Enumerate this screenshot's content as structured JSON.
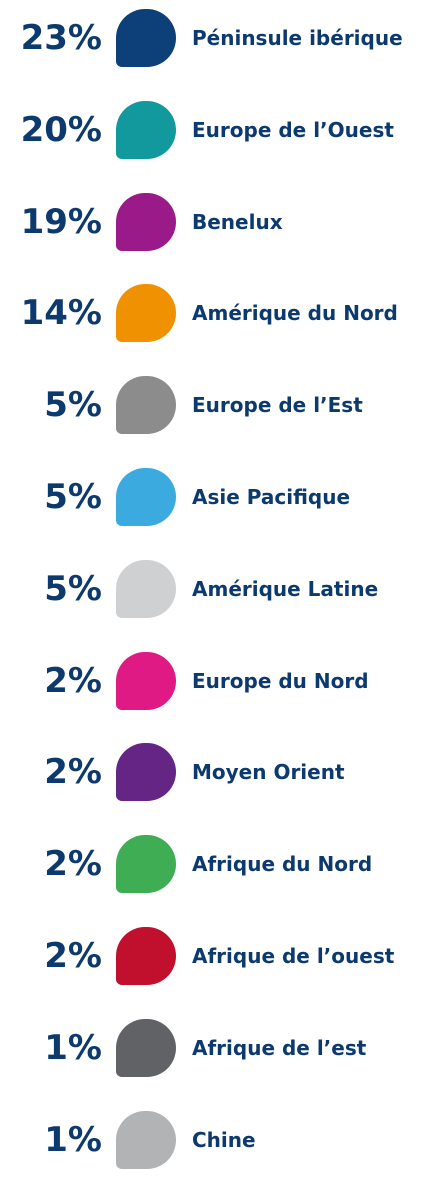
{
  "items": [
    {
      "percent": "23%",
      "label": "Péninsule ibérique",
      "color": "#0d3f78"
    },
    {
      "percent": "20%",
      "label": "Europe de l’Ouest",
      "color": "#11999e"
    },
    {
      "percent": "19%",
      "label": "Benelux",
      "color": "#9b1a8a"
    },
    {
      "percent": "14%",
      "label": "Amérique du Nord",
      "color": "#ef9100"
    },
    {
      "percent": "5%",
      "label": "Europe de l’Est",
      "color": "#8c8c8c"
    },
    {
      "percent": "5%",
      "label": "Asie Pacifique",
      "color": "#3aaadf"
    },
    {
      "percent": "5%",
      "label": "Amérique Latine",
      "color": "#cfd0d2"
    },
    {
      "percent": "2%",
      "label": "Europe du Nord",
      "color": "#e01a84"
    },
    {
      "percent": "2%",
      "label": "Moyen Orient",
      "color": "#652585"
    },
    {
      "percent": "2%",
      "label": "Afrique du Nord",
      "color": "#3ead54"
    },
    {
      "percent": "2%",
      "label": "Afrique de l’ouest",
      "color": "#c0102d"
    },
    {
      "percent": "1%",
      "label": "Afrique de l’est",
      "color": "#616266"
    },
    {
      "percent": "1%",
      "label": "Chine",
      "color": "#b2b3b5"
    }
  ]
}
